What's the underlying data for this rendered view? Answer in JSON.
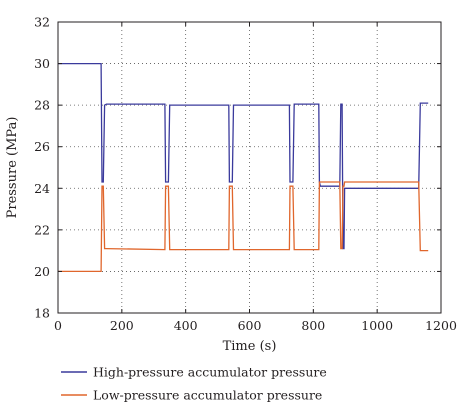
{
  "chart_data": {
    "type": "line",
    "xlabel": "Time (s)",
    "ylabel": "Pressure (MPa)",
    "xlim": [
      0,
      1200
    ],
    "ylim": [
      18,
      32
    ],
    "xticks": [
      0,
      200,
      400,
      600,
      800,
      1000,
      1200
    ],
    "yticks": [
      18,
      20,
      22,
      24,
      26,
      28,
      30,
      32
    ],
    "grid": true,
    "grid_style": "dotted",
    "legend_position": "bottom",
    "series": [
      {
        "name": "High-pressure accumulator pressure",
        "color": "#3a3a9c",
        "x": [
          0,
          135,
          138,
          142,
          146,
          152,
          335,
          337,
          341,
          346,
          350,
          535,
          537,
          541,
          546,
          550,
          725,
          727,
          731,
          736,
          740,
          817,
          819,
          822,
          826,
          883,
          886,
          890,
          893,
          896,
          898,
          900,
          1127,
          1130,
          1135,
          1160
        ],
        "y": [
          30,
          30,
          24.3,
          24.3,
          28,
          28.05,
          28.05,
          24.3,
          24.3,
          24.3,
          28,
          28,
          24.3,
          24.3,
          24.3,
          28,
          28,
          24.3,
          24.3,
          24.3,
          28.05,
          28.05,
          24.3,
          24.1,
          24.1,
          24.1,
          28.05,
          28.05,
          21.1,
          21.1,
          24,
          24,
          24,
          24,
          28.1,
          28.1
        ]
      },
      {
        "name": "Low-pressure accumulator pressure",
        "color": "#e0662c",
        "x": [
          0,
          135,
          138,
          142,
          146,
          152,
          335,
          337,
          341,
          346,
          350,
          535,
          537,
          541,
          546,
          550,
          725,
          727,
          731,
          736,
          740,
          817,
          819,
          822,
          826,
          883,
          886,
          890,
          893,
          896,
          898,
          900,
          1127,
          1130,
          1135,
          1160
        ],
        "y": [
          20,
          20,
          24.1,
          24.1,
          21.1,
          21.1,
          21.05,
          24.1,
          24.1,
          24.1,
          21.05,
          21.05,
          24.1,
          24.1,
          24.1,
          21.05,
          21.05,
          24.1,
          24.1,
          24.1,
          21.05,
          21.05,
          24.3,
          24.3,
          24.3,
          24.3,
          21.1,
          21.1,
          24.1,
          24.1,
          24.3,
          24.3,
          24.3,
          24.3,
          21,
          21
        ]
      }
    ]
  }
}
